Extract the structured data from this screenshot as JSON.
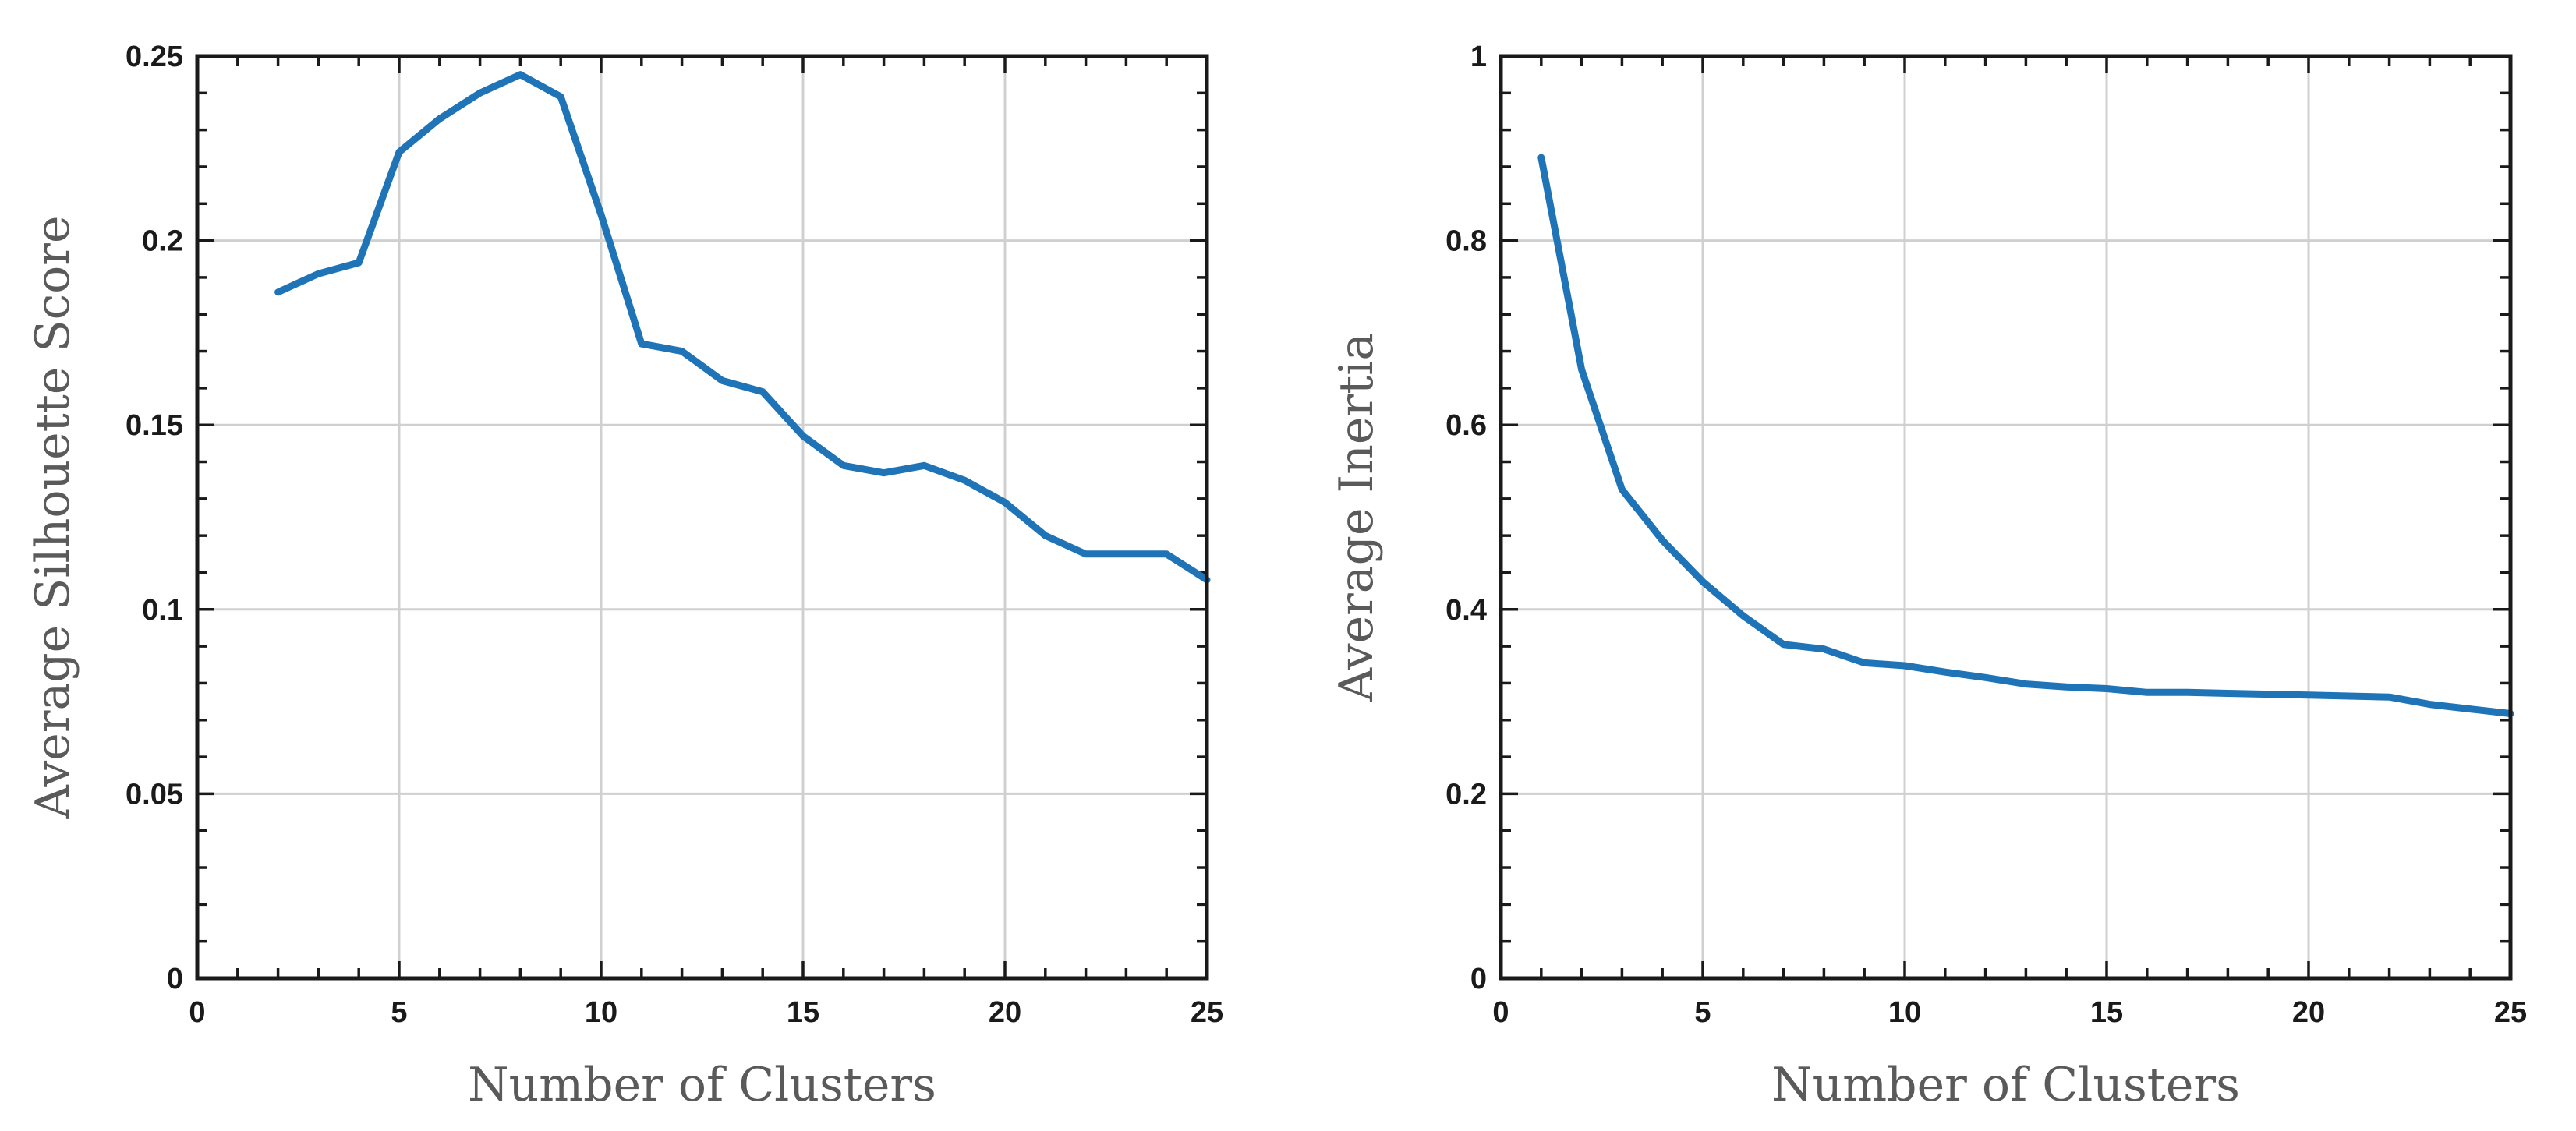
{
  "chart_data": [
    {
      "type": "line",
      "title": "",
      "xlabel": "Number of Clusters",
      "ylabel": "Average Silhouette Score",
      "xlim": [
        0,
        25
      ],
      "ylim": [
        0,
        0.25
      ],
      "xticks": [
        0,
        5,
        10,
        15,
        20,
        25
      ],
      "xtick_labels": [
        "0",
        "5",
        "10",
        "15",
        "20",
        "25"
      ],
      "yticks": [
        0,
        0.05,
        0.1,
        0.15,
        0.2,
        0.25
      ],
      "ytick_labels": [
        "0",
        "0.05",
        "0.1",
        "0.15",
        "0.2",
        "0.25"
      ],
      "minor_step_x": 1,
      "minor_step_y": 0.01,
      "grid": true,
      "color": "#1f73b7",
      "series": [
        {
          "name": "Average Silhouette Score",
          "x": [
            2,
            3,
            4,
            5,
            6,
            7,
            8,
            9,
            10,
            11,
            12,
            13,
            14,
            15,
            16,
            17,
            18,
            19,
            20,
            21,
            22,
            23,
            24,
            25
          ],
          "values": [
            0.186,
            0.191,
            0.194,
            0.224,
            0.233,
            0.24,
            0.245,
            0.239,
            0.207,
            0.172,
            0.17,
            0.162,
            0.159,
            0.147,
            0.139,
            0.137,
            0.139,
            0.135,
            0.129,
            0.12,
            0.115,
            0.115,
            0.115,
            0.108
          ]
        }
      ]
    },
    {
      "type": "line",
      "title": "",
      "xlabel": "Number of Clusters",
      "ylabel": "Average Inertia",
      "xlim": [
        0,
        25
      ],
      "ylim": [
        0,
        1
      ],
      "xticks": [
        0,
        5,
        10,
        15,
        20,
        25
      ],
      "xtick_labels": [
        "0",
        "5",
        "10",
        "15",
        "20",
        "25"
      ],
      "yticks": [
        0,
        0.2,
        0.4,
        0.6,
        0.8,
        1
      ],
      "ytick_labels": [
        "0",
        "0.2",
        "0.4",
        "0.6",
        "0.8",
        "1"
      ],
      "minor_step_x": 1,
      "minor_step_y": 0.04,
      "grid": true,
      "color": "#1f73b7",
      "series": [
        {
          "name": "Average Inertia",
          "x": [
            1,
            2,
            3,
            4,
            5,
            6,
            7,
            8,
            9,
            10,
            11,
            12,
            13,
            14,
            15,
            16,
            17,
            18,
            19,
            20,
            21,
            22,
            23,
            24,
            25
          ],
          "values": [
            0.89,
            0.66,
            0.53,
            0.475,
            0.43,
            0.393,
            0.362,
            0.357,
            0.342,
            0.339,
            0.332,
            0.326,
            0.319,
            0.316,
            0.314,
            0.31,
            0.31,
            0.309,
            0.308,
            0.307,
            0.306,
            0.305,
            0.297,
            0.292,
            0.287
          ]
        }
      ]
    }
  ]
}
